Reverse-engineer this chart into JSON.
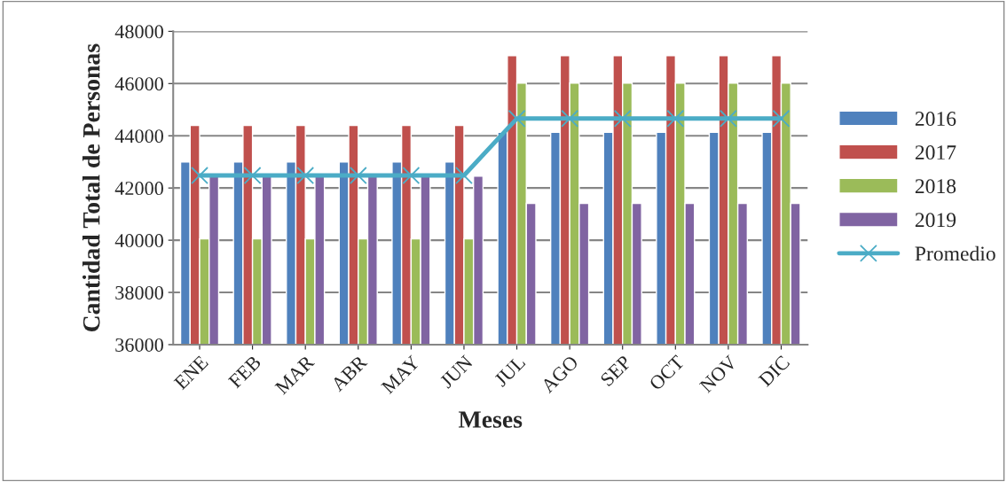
{
  "chart_data": {
    "type": "bar",
    "xlabel": "Meses",
    "ylabel": "Cantidad Total de Personas",
    "categories": [
      "ENE",
      "FEB",
      "MAR",
      "ABR",
      "MAY",
      "JUN",
      "JUL",
      "AGO",
      "SEP",
      "OCT",
      "NOV",
      "DIC"
    ],
    "series": [
      {
        "name": "2016",
        "color": "#4f81bd",
        "values": [
          43000,
          43000,
          43000,
          43000,
          43000,
          43000,
          44130,
          44130,
          44130,
          44130,
          44130,
          44130
        ]
      },
      {
        "name": "2017",
        "color": "#c0504d",
        "values": [
          44400,
          44400,
          44400,
          44400,
          44400,
          44400,
          47070,
          47070,
          47070,
          47070,
          47070,
          47070
        ]
      },
      {
        "name": "2018",
        "color": "#9bbb59",
        "values": [
          40050,
          40050,
          40050,
          40050,
          40050,
          40050,
          46020,
          46020,
          46020,
          46020,
          46020,
          46020
        ]
      },
      {
        "name": "2019",
        "color": "#8064a2",
        "values": [
          42450,
          42450,
          42450,
          42450,
          42450,
          42450,
          41410,
          41410,
          41410,
          41410,
          41410,
          41410
        ]
      },
      {
        "name": "Promedio",
        "type": "line",
        "color": "#4bacc6",
        "marker": "cross",
        "values": [
          42480,
          42480,
          42480,
          42480,
          42480,
          42480,
          44660,
          44660,
          44660,
          44660,
          44660,
          44660
        ]
      }
    ],
    "ylim": [
      36000,
      48000
    ],
    "yticks": [
      36000,
      38000,
      40000,
      42000,
      44000,
      46000,
      48000
    ],
    "grid": "y",
    "legend": "right"
  }
}
